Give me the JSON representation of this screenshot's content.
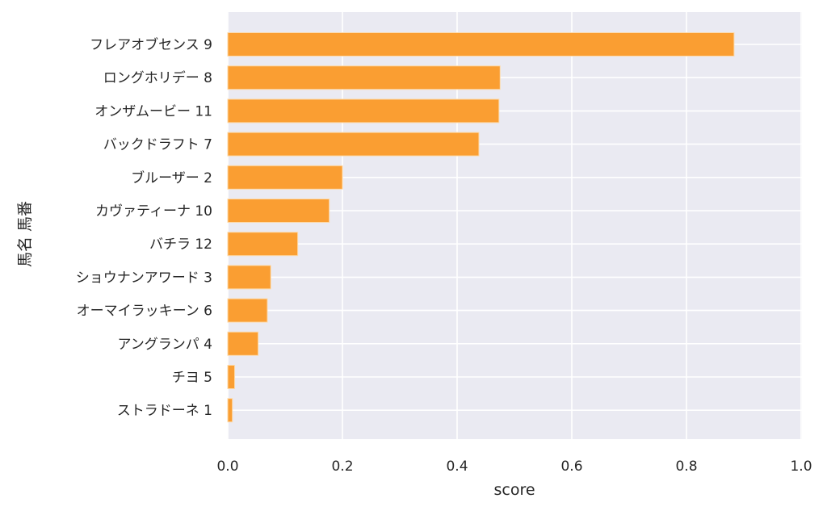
{
  "chart_data": {
    "type": "bar",
    "orientation": "horizontal",
    "title": "",
    "xlabel": "score",
    "ylabel": "馬名 馬番",
    "xlim": [
      0,
      1.0
    ],
    "xticks": [
      "0.0",
      "0.2",
      "0.4",
      "0.6",
      "0.8",
      "1.0"
    ],
    "grid": true,
    "categories": [
      "フレアオブセンス 9",
      "ロングホリデー 8",
      "オンザムービー 11",
      "バックドラフト 7",
      "ブルーザー 2",
      "カヴァティーナ 10",
      "バチラ 12",
      "ショウナンアワード 3",
      "オーマイラッキーン 6",
      "アングランパ 4",
      "チヨ 5",
      "ストラドーネ 1"
    ],
    "values": [
      0.883,
      0.475,
      0.473,
      0.438,
      0.2,
      0.177,
      0.122,
      0.075,
      0.069,
      0.053,
      0.012,
      0.008
    ],
    "colors": {
      "bar": "#fa9e32",
      "bar_edge": "#fdd9a8",
      "background": "#eaeaf2",
      "grid": "#ffffff"
    }
  }
}
